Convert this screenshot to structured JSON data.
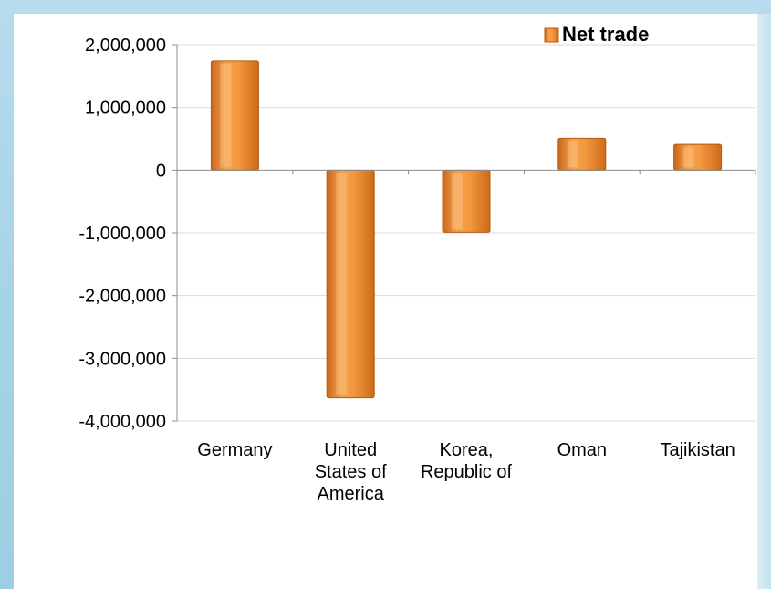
{
  "chart_data": {
    "type": "bar",
    "categories": [
      [
        "Germany"
      ],
      [
        "United",
        "States of",
        "America"
      ],
      [
        "Korea,",
        "Republic of"
      ],
      [
        "Oman"
      ],
      [
        "Tajikistan"
      ]
    ],
    "series": [
      {
        "name": "Net trade",
        "values": [
          1740000,
          -3630000,
          -990000,
          510000,
          410000
        ]
      }
    ],
    "ylim": [
      -4000000,
      2000000
    ],
    "yticks": [
      2000000,
      1000000,
      0,
      -1000000,
      -2000000,
      -3000000,
      -4000000
    ],
    "ytick_labels": [
      "2,000,000",
      "1,000,000",
      "0",
      "-1,000,000",
      "-2,000,000",
      "-3,000,000",
      "-4,000,000"
    ],
    "grid": true,
    "legend_position": "top-right",
    "colors": {
      "bar": "#e8812a",
      "bar_light": "#fbc07a",
      "bar_dark": "#b55a10",
      "grid": "#d9d9d9",
      "axis": "#8c8c8c"
    }
  }
}
